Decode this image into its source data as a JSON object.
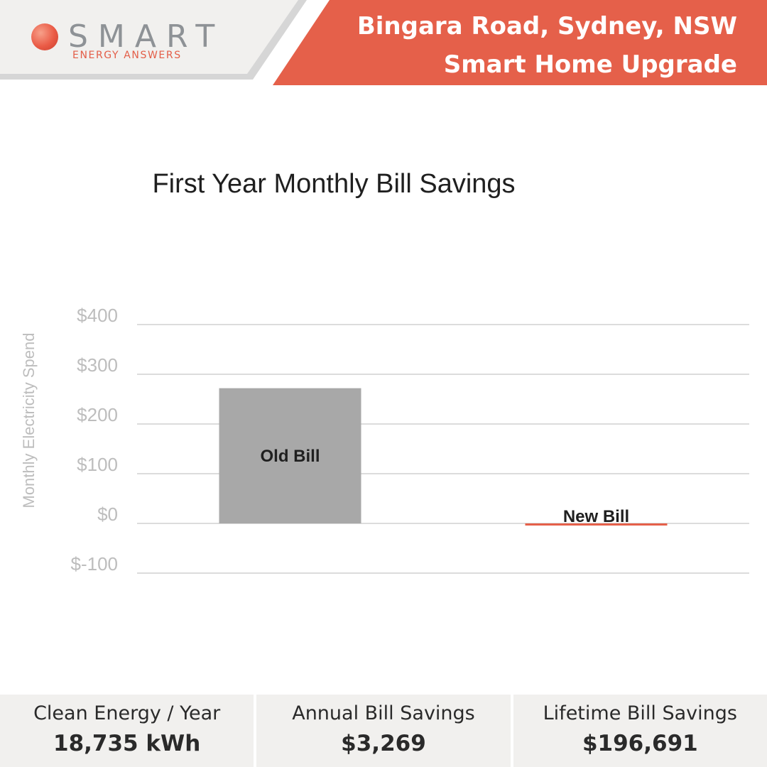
{
  "header": {
    "brand_word": "SMART",
    "brand_sub": "ENERGY ANSWERS",
    "title_line1": "Bingara Road, Sydney, NSW",
    "title_line2": "Smart Home Upgrade",
    "accent_color": "#e5604a",
    "panel_color": "#f1f0ee"
  },
  "chart_data": {
    "type": "bar",
    "title": "First Year Monthly Bill Savings",
    "ylabel": "Monthly Electricity Spend",
    "xlabel": "",
    "ylim": [
      -100,
      400
    ],
    "yticks": [
      400,
      300,
      200,
      100,
      0,
      -100
    ],
    "ytick_labels": [
      "$400",
      "$300",
      "$200",
      "$100",
      "$0",
      "$-100"
    ],
    "grid": true,
    "categories": [
      "Old Bill",
      "New Bill"
    ],
    "values": [
      272,
      -3
    ],
    "colors": [
      "#a8a8a8",
      "#e5604a"
    ]
  },
  "stats": [
    {
      "label": "Clean Energy / Year",
      "value": "18,735 kWh"
    },
    {
      "label": "Annual Bill Savings",
      "value": "$3,269"
    },
    {
      "label": "Lifetime Bill Savings",
      "value": "$196,691"
    }
  ]
}
